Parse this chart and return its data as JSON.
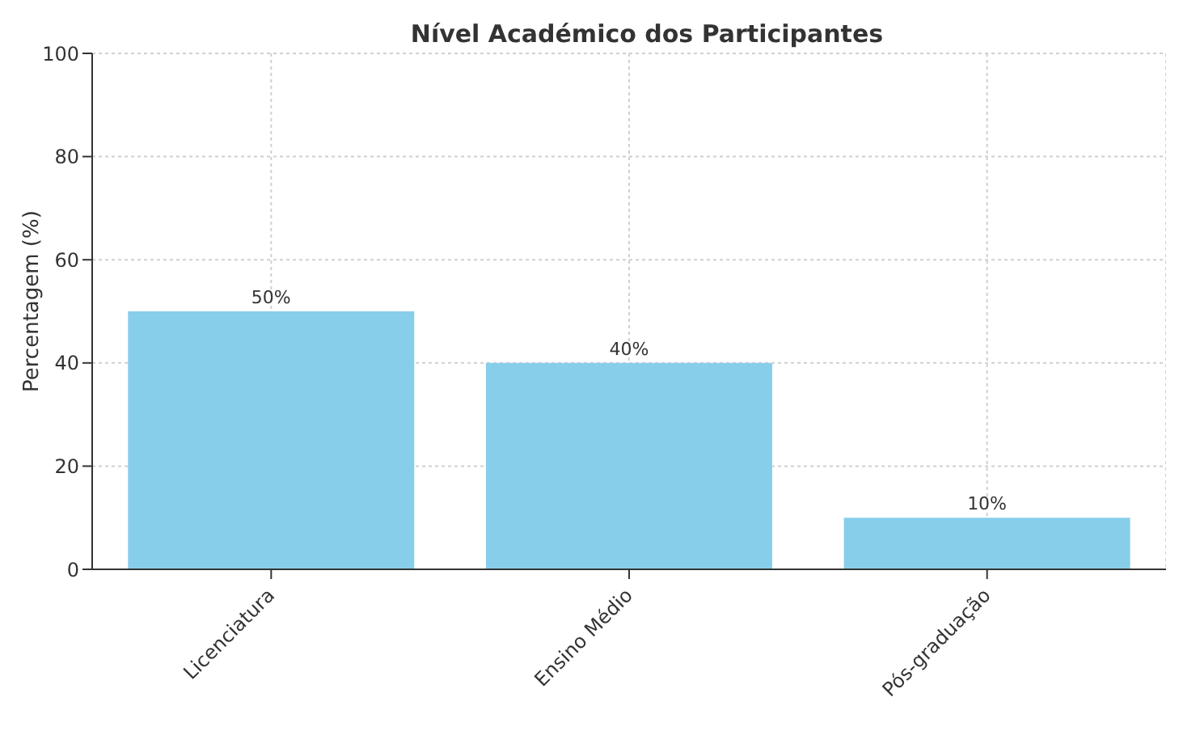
{
  "chart_data": {
    "type": "bar",
    "title": "Nível Académico dos Participantes",
    "ylabel": "Percentagem (%)",
    "categories": [
      "Licenciatura",
      "Ensino Médio",
      "Pós-graduação"
    ],
    "values": [
      50,
      40,
      10
    ],
    "color": "#87ceeb",
    "value_labels": [
      "50%",
      "40%",
      "10%"
    ],
    "ylim": [
      0,
      100
    ],
    "yticks": [
      0,
      20,
      40,
      60,
      80,
      100
    ],
    "grid": true
  }
}
